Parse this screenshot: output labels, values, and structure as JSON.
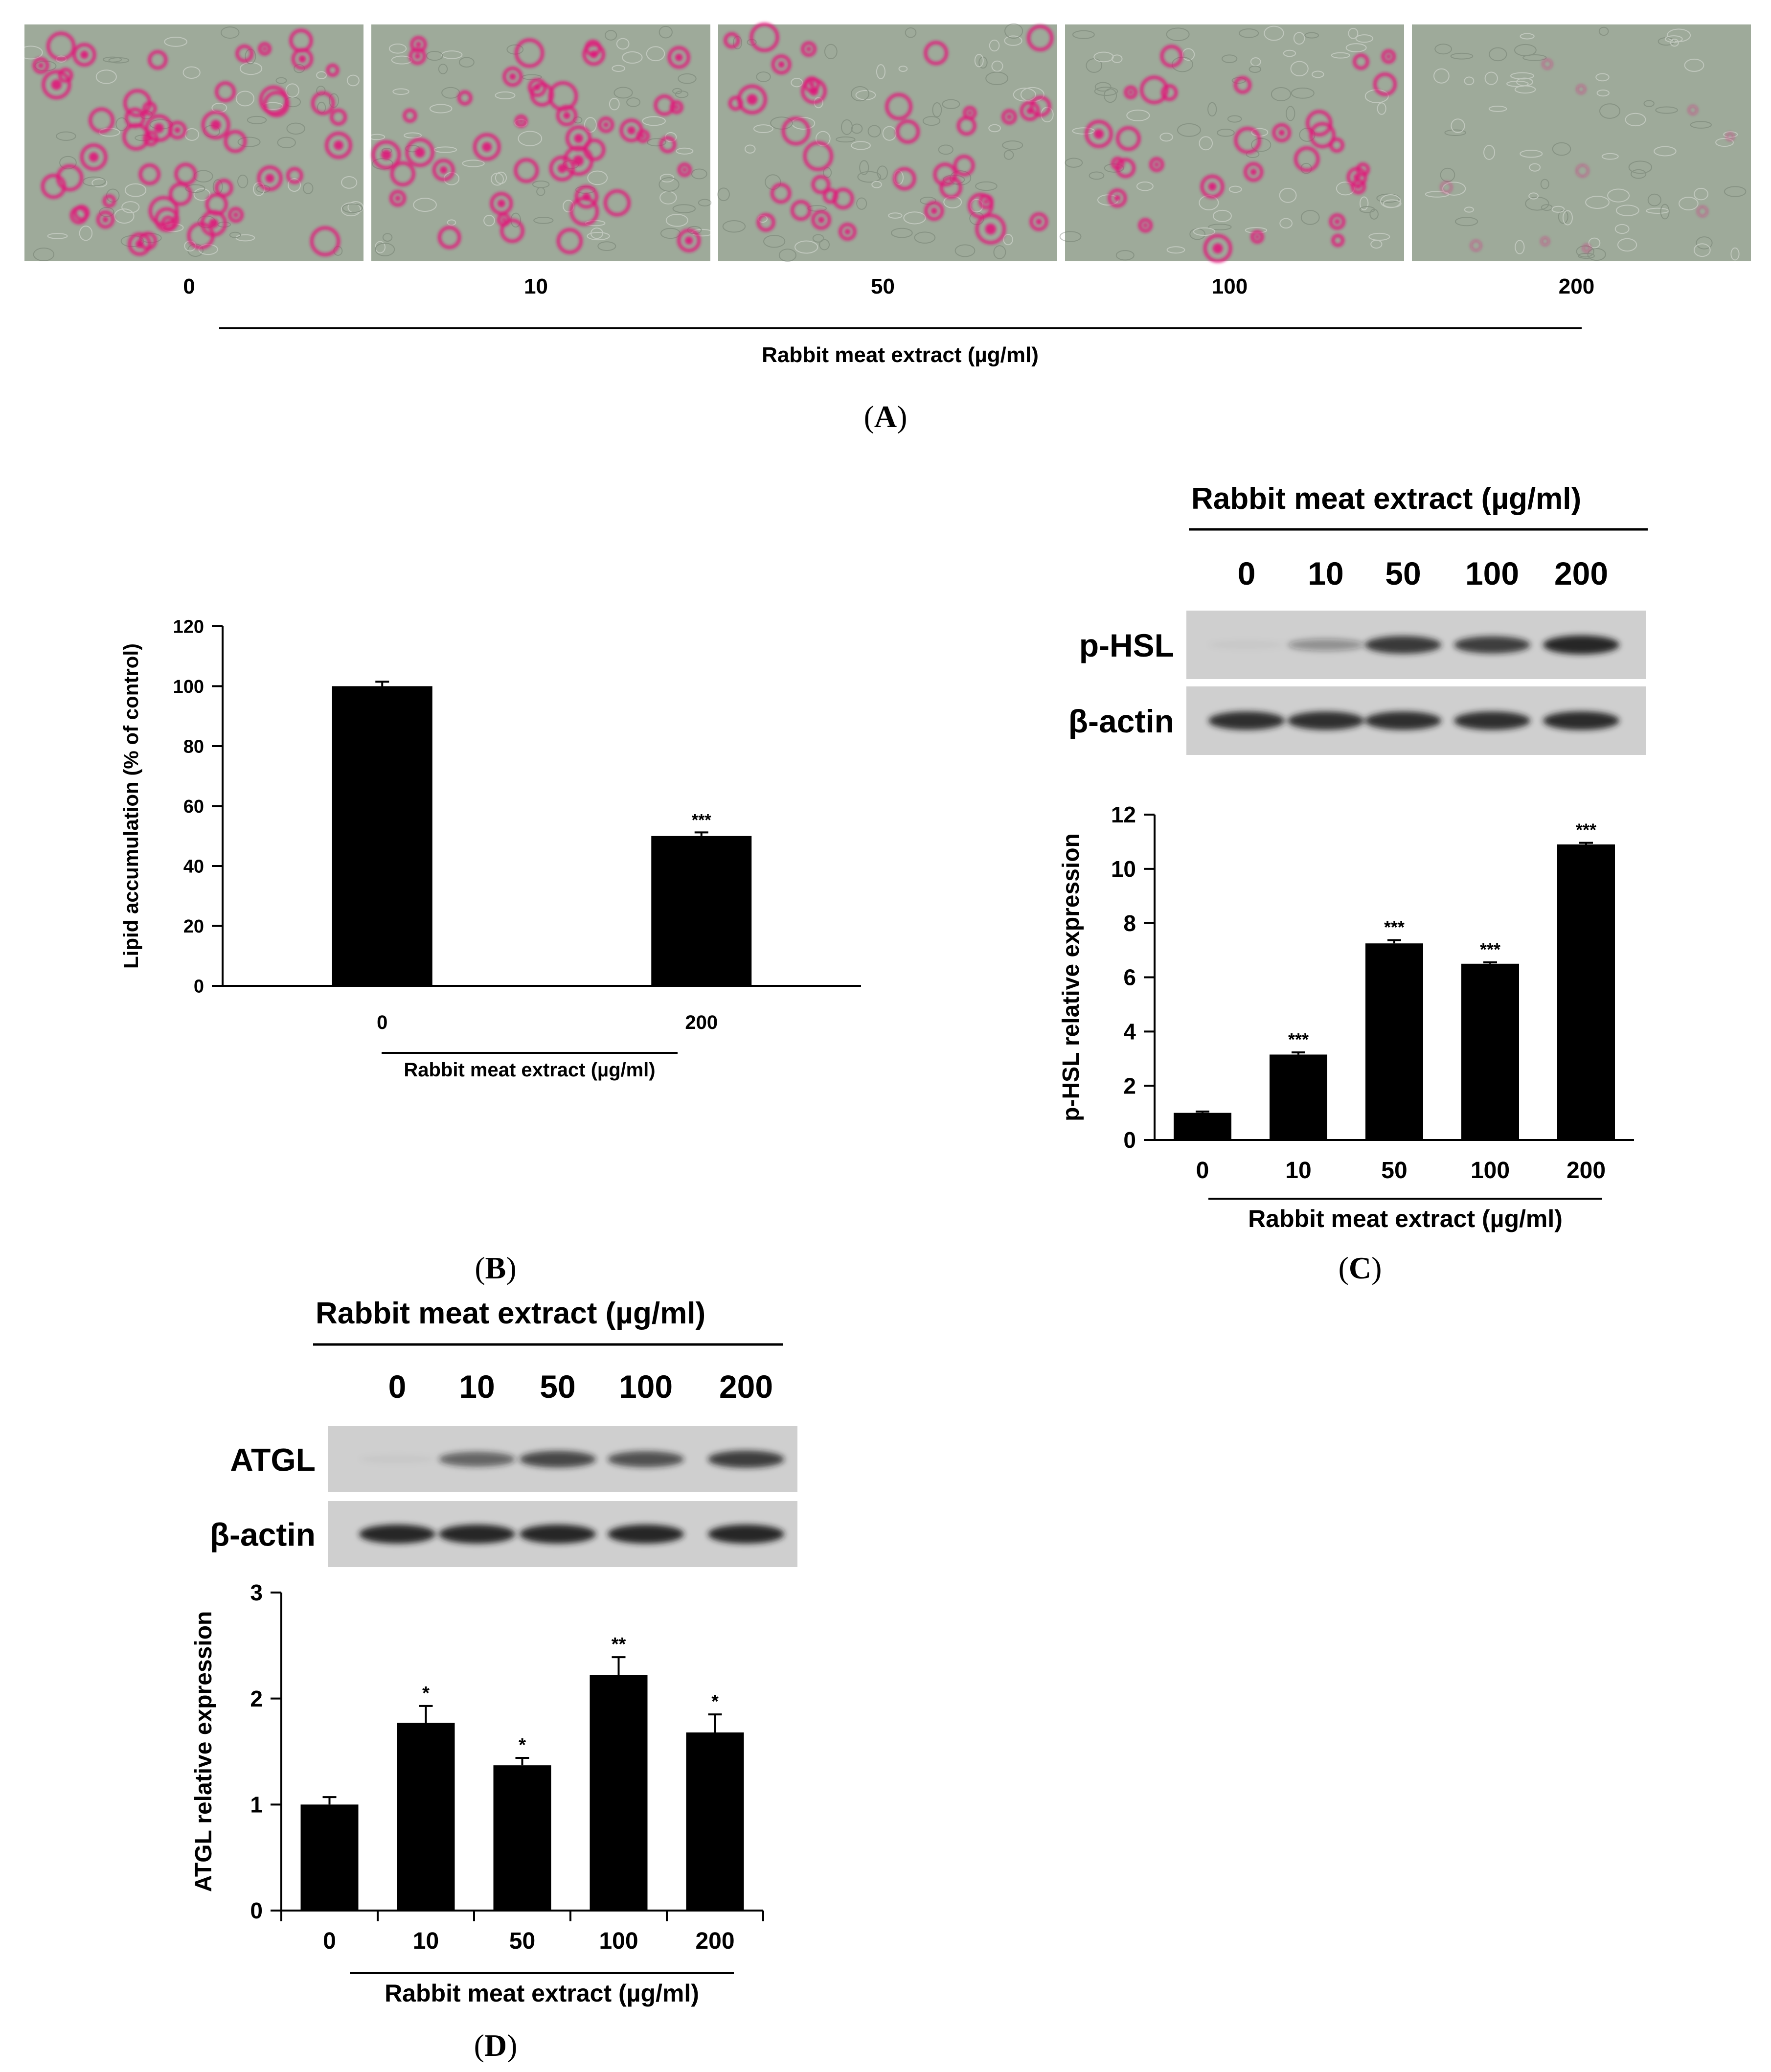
{
  "colors": {
    "stain": "#e0157a",
    "cell_bg": "#9eaa9a",
    "bar": "#000000",
    "band": "#1c1c1c",
    "blot_bg": "#cfcfcf"
  },
  "panels": {
    "A": {
      "label_open": "(",
      "label_letter": "A",
      "label_close": ")",
      "doses": [
        "0",
        "10",
        "50",
        "100",
        "200"
      ],
      "stain_level": [
        0.9,
        0.75,
        0.65,
        0.55,
        0.18
      ],
      "xtitle": "Rabbit meat extract (µg/ml)"
    },
    "B": {
      "label_open": "(",
      "label_letter": "B",
      "label_close": ")"
    },
    "C": {
      "label_open": "(",
      "label_letter": "C",
      "label_close": ")",
      "blot_title": "Rabbit meat extract (µg/ml)",
      "blot_lanes": [
        "0",
        "10",
        "50",
        "100",
        "200"
      ],
      "rows": [
        {
          "name": "p-HSL",
          "intensity": [
            0.03,
            0.35,
            0.85,
            0.8,
            0.95
          ]
        },
        {
          "name": "β-actin",
          "intensity": [
            0.9,
            0.9,
            0.9,
            0.9,
            0.92
          ]
        }
      ]
    },
    "D": {
      "label_open": "(",
      "label_letter": "D",
      "label_close": ")",
      "blot_title": "Rabbit meat extract (µg/ml)",
      "blot_lanes": [
        "0",
        "10",
        "50",
        "100",
        "200"
      ],
      "rows": [
        {
          "name": "ATGL",
          "intensity": [
            0.03,
            0.6,
            0.75,
            0.7,
            0.8
          ]
        },
        {
          "name": "β-actin",
          "intensity": [
            0.95,
            0.95,
            0.95,
            0.95,
            0.95
          ]
        }
      ]
    }
  },
  "chart_data": [
    {
      "id": "B",
      "type": "bar",
      "categories": [
        "0",
        "200"
      ],
      "values": [
        100,
        50
      ],
      "errors": [
        1.5,
        1.2
      ],
      "significance": [
        "",
        "***"
      ],
      "ylabel": "Lipid accumulation (% of control)",
      "xlabel": "Rabbit meat extract (µg/ml)",
      "ylim": [
        0,
        120
      ],
      "yticks": [
        0,
        20,
        40,
        60,
        80,
        100,
        120
      ]
    },
    {
      "id": "C",
      "type": "bar",
      "categories": [
        "0",
        "10",
        "50",
        "100",
        "200"
      ],
      "values": [
        1.0,
        3.15,
        7.25,
        6.5,
        10.9
      ],
      "errors": [
        0.05,
        0.08,
        0.12,
        0.05,
        0.06
      ],
      "significance": [
        "",
        "***",
        "***",
        "***",
        "***"
      ],
      "ylabel": "p-HSL relative expression",
      "xlabel": "Rabbit meat extract (µg/ml)",
      "ylim": [
        0,
        12
      ],
      "yticks": [
        0,
        2,
        4,
        6,
        8,
        10,
        12
      ]
    },
    {
      "id": "D",
      "type": "bar",
      "categories": [
        "0",
        "10",
        "50",
        "100",
        "200"
      ],
      "values": [
        1.0,
        1.77,
        1.37,
        2.22,
        1.68
      ],
      "errors": [
        0.07,
        0.16,
        0.07,
        0.17,
        0.17
      ],
      "significance": [
        "",
        "*",
        "*",
        "**",
        "*"
      ],
      "ylabel": "ATGL relative expression",
      "xlabel": "Rabbit meat extract (µg/ml)",
      "ylim": [
        0,
        3
      ],
      "yticks": [
        0,
        1,
        2,
        3
      ]
    }
  ]
}
